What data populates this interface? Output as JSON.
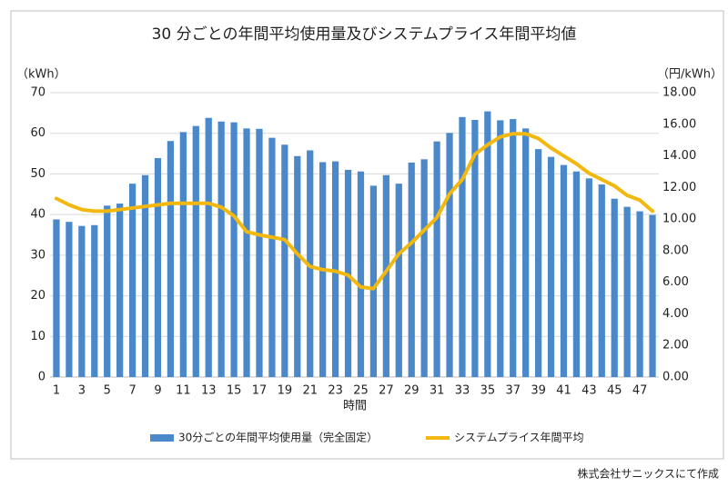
{
  "chart_data": {
    "type": "bar+line",
    "title": "30 分ごとの年間平均使用量及びシステムプライス年間平均値",
    "ylabel": "（kWh）",
    "y2label": "（円/kWh）",
    "xlabel": "時間",
    "source": "株式会社サニックスにて作成",
    "categories": [
      1,
      null,
      3,
      null,
      5,
      null,
      7,
      null,
      9,
      null,
      11,
      null,
      13,
      null,
      15,
      null,
      17,
      null,
      19,
      null,
      21,
      null,
      23,
      null,
      25,
      null,
      27,
      null,
      29,
      null,
      31,
      null,
      33,
      null,
      35,
      null,
      37,
      null,
      39,
      null,
      41,
      null,
      43,
      null,
      45,
      null,
      47,
      null
    ],
    "series": [
      {
        "name": "30分ごとの年間平均使用量（完全固定）",
        "type": "bar",
        "color": "#4a88c9",
        "values": [
          38.8,
          38.2,
          37.2,
          37.4,
          42.2,
          42.7,
          47.6,
          49.7,
          53.9,
          58.1,
          60.3,
          61.8,
          63.8,
          62.9,
          62.7,
          61.2,
          61.1,
          58.9,
          57.2,
          54.4,
          55.8,
          52.9,
          53.1,
          51.0,
          50.6,
          47.1,
          49.7,
          47.6,
          52.8,
          53.6,
          58.0,
          60.1,
          64.0,
          63.3,
          65.4,
          63.2,
          63.5,
          61.2,
          56.1,
          54.2,
          52.2,
          50.6,
          48.9,
          47.4,
          43.9,
          41.9,
          40.8,
          39.9
        ]
      },
      {
        "name": "システムプライス年間平均",
        "type": "line",
        "axis": "y2",
        "color": "#f2b80f",
        "values": [
          11.3,
          10.9,
          10.6,
          10.5,
          10.5,
          10.6,
          10.7,
          10.8,
          10.9,
          11.0,
          11.0,
          11.0,
          11.0,
          10.75,
          10.2,
          9.2,
          9.0,
          8.85,
          8.7,
          7.8,
          7.0,
          6.8,
          6.7,
          6.45,
          5.7,
          5.6,
          6.7,
          7.8,
          8.5,
          9.3,
          10.1,
          11.6,
          12.5,
          14.1,
          14.7,
          15.2,
          15.4,
          15.4,
          15.1,
          14.5,
          14.0,
          13.5,
          12.9,
          12.5,
          12.1,
          11.5,
          11.2,
          10.5
        ]
      }
    ],
    "ylim": [
      0,
      70
    ],
    "yticks": [
      0,
      10,
      20,
      30,
      40,
      50,
      60,
      70
    ],
    "y2lim": [
      0,
      18
    ],
    "y2ticks": [
      {
        "value": 0,
        "label": "0.00"
      },
      {
        "value": 2,
        "label": "2.00"
      },
      {
        "value": 4,
        "label": "4.00"
      },
      {
        "value": 6,
        "label": "6.00"
      },
      {
        "value": 8,
        "label": "8.00"
      },
      {
        "value": 10,
        "label": "10.00"
      },
      {
        "value": 12,
        "label": "12.00"
      },
      {
        "value": 14,
        "label": "14.00"
      },
      {
        "value": 16,
        "label": "16.00"
      },
      {
        "value": 18,
        "label": "18.00"
      }
    ],
    "grid": true,
    "legend": "bottom"
  }
}
